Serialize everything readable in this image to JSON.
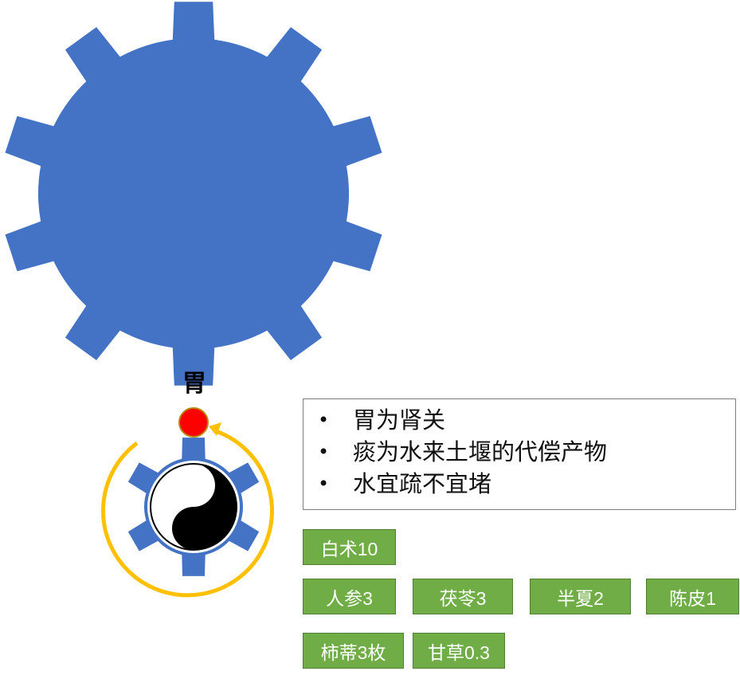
{
  "organ_label": "胃",
  "notes": [
    "胃为肾关",
    "痰为水来土堰的代偿产物",
    "水宜疏不宜堵"
  ],
  "herbs": [
    "白术10",
    "人参3",
    "茯苓3",
    "半夏2",
    "陈皮1",
    "柿蒂3枚",
    "甘草0.3"
  ],
  "colors": {
    "gear_blue": "#4472c4",
    "herb_green": "#70ad47",
    "arrow_gold": "#ffc000",
    "dot_red": "#ff0000"
  }
}
